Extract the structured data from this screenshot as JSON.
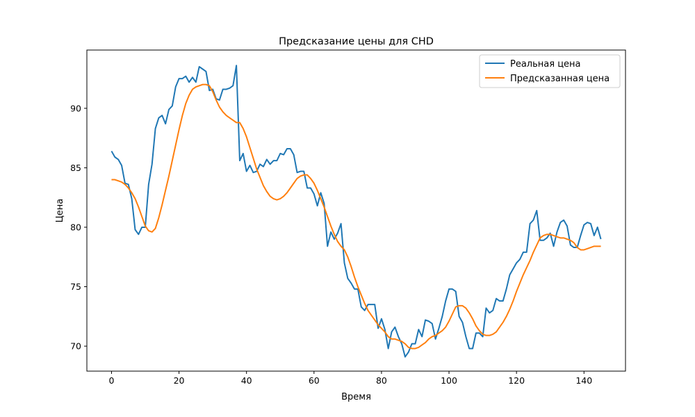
{
  "chart_data": {
    "type": "line",
    "title": "Предсказание цены для CHD",
    "xlabel": "Время",
    "ylabel": "Цена",
    "xlim": [
      -7.3,
      152.3
    ],
    "ylim": [
      67.9,
      94.9
    ],
    "xticks": [
      0,
      20,
      40,
      60,
      80,
      100,
      120,
      140
    ],
    "yticks": [
      70,
      75,
      80,
      85,
      90
    ],
    "xtick_labels": [
      "0",
      "20",
      "40",
      "60",
      "80",
      "100",
      "120",
      "140"
    ],
    "ytick_labels": [
      "70",
      "75",
      "80",
      "85",
      "90"
    ],
    "grid": false,
    "legend_position": "upper right",
    "colors": {
      "real": "#1f77b4",
      "predicted": "#ff7f0e"
    },
    "series": [
      {
        "name": "Реальная цена",
        "color": "#1f77b4",
        "values": [
          86.4,
          85.9,
          85.7,
          85.2,
          83.7,
          83.6,
          82.4,
          79.8,
          79.4,
          80.0,
          80.0,
          83.6,
          85.3,
          88.3,
          89.2,
          89.4,
          88.7,
          89.9,
          90.2,
          91.8,
          92.5,
          92.5,
          92.7,
          92.2,
          92.6,
          92.2,
          93.5,
          93.3,
          93.1,
          91.5,
          91.6,
          90.8,
          90.7,
          91.6,
          91.6,
          91.7,
          91.9,
          93.6,
          85.6,
          86.2,
          84.7,
          85.2,
          84.6,
          84.7,
          85.3,
          85.1,
          85.7,
          85.3,
          85.6,
          85.6,
          86.2,
          86.1,
          86.6,
          86.6,
          86.1,
          84.6,
          84.7,
          84.7,
          83.3,
          83.3,
          82.8,
          81.8,
          82.9,
          82.0,
          78.4,
          79.6,
          79.0,
          79.5,
          80.3,
          77.0,
          75.7,
          75.3,
          74.8,
          74.8,
          73.3,
          73.0,
          73.5,
          73.5,
          73.5,
          71.5,
          72.3,
          71.4,
          69.8,
          71.2,
          71.6,
          70.8,
          70.2,
          69.1,
          69.5,
          70.2,
          70.2,
          71.4,
          70.8,
          72.2,
          72.1,
          71.9,
          70.6,
          71.5,
          72.5,
          73.8,
          74.8,
          74.8,
          74.6,
          72.5,
          72.0,
          70.8,
          69.8,
          69.8,
          71.1,
          71.1,
          70.8,
          73.2,
          72.8,
          73.0,
          74.0,
          73.8,
          73.8,
          74.8,
          76.0,
          76.5,
          77.0,
          77.3,
          77.9,
          77.9,
          80.3,
          80.6,
          81.4,
          78.9,
          78.9,
          79.1,
          79.5,
          78.4,
          79.6,
          80.4,
          80.6,
          80.1,
          78.5,
          78.3,
          78.3,
          79.3,
          80.2,
          80.4,
          80.3,
          79.3,
          80.0,
          79.0
        ]
      },
      {
        "name": "Предсказанная цена",
        "color": "#ff7f0e",
        "values": [
          84.0,
          84.0,
          83.9,
          83.8,
          83.6,
          83.3,
          82.9,
          82.4,
          81.7,
          80.9,
          80.1,
          79.7,
          79.6,
          79.9,
          80.8,
          81.9,
          83.1,
          84.3,
          85.6,
          86.9,
          88.2,
          89.4,
          90.4,
          91.1,
          91.6,
          91.8,
          91.9,
          92.0,
          92.0,
          91.9,
          91.4,
          90.7,
          90.1,
          89.7,
          89.4,
          89.2,
          89.0,
          88.8,
          88.8,
          88.3,
          87.6,
          86.7,
          85.8,
          84.9,
          84.2,
          83.5,
          83.0,
          82.6,
          82.4,
          82.3,
          82.4,
          82.6,
          82.9,
          83.3,
          83.7,
          84.1,
          84.3,
          84.4,
          84.4,
          84.1,
          83.7,
          83.1,
          82.4,
          81.7,
          80.9,
          80.1,
          79.4,
          78.8,
          78.4,
          78.1,
          77.5,
          76.7,
          75.8,
          75.0,
          74.3,
          73.6,
          73.0,
          72.6,
          72.2,
          71.8,
          71.5,
          71.2,
          70.8,
          70.6,
          70.6,
          70.5,
          70.4,
          70.2,
          69.9,
          69.8,
          69.8,
          69.9,
          70.1,
          70.3,
          70.6,
          70.8,
          70.9,
          71.1,
          71.3,
          71.6,
          72.1,
          72.7,
          73.3,
          73.4,
          73.4,
          73.2,
          72.8,
          72.3,
          71.7,
          71.3,
          71.0,
          70.9,
          70.9,
          71.0,
          71.2,
          71.6,
          72.0,
          72.5,
          73.1,
          73.8,
          74.6,
          75.3,
          76.0,
          76.6,
          77.2,
          77.9,
          78.5,
          79.1,
          79.3,
          79.4,
          79.4,
          79.3,
          79.2,
          79.1,
          79.1,
          79.0,
          78.9,
          78.7,
          78.3,
          78.1,
          78.1,
          78.2,
          78.3,
          78.4,
          78.4,
          78.4
        ]
      }
    ]
  }
}
